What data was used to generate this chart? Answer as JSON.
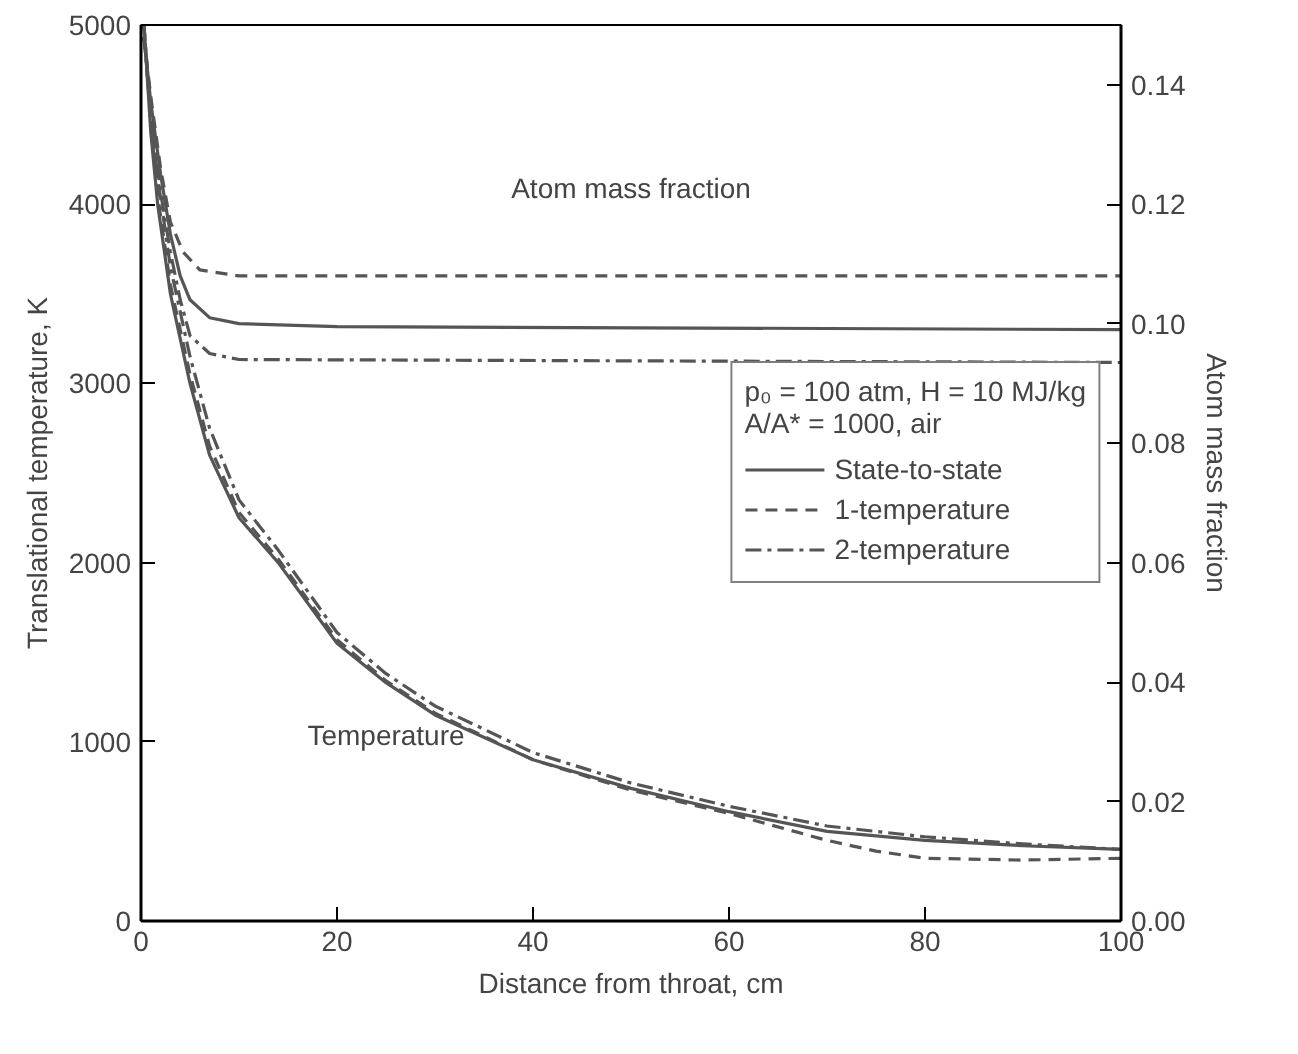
{
  "chart_data": {
    "type": "line",
    "xlabel": "Distance from throat, cm",
    "ylabel": "Translational temperature, K",
    "y2label": "Atom mass fraction",
    "xlim": [
      0,
      100
    ],
    "xticks": [
      0,
      20,
      40,
      60,
      80,
      100
    ],
    "ylim": [
      0,
      5000
    ],
    "yticks": [
      0,
      1000,
      2000,
      3000,
      4000,
      5000
    ],
    "y2lim": [
      0,
      0.15
    ],
    "y2ticks": [
      {
        "value": 0,
        "label": "0.00"
      },
      {
        "value": 0.02,
        "label": "0.02"
      },
      {
        "value": 0.04,
        "label": "0.04"
      },
      {
        "value": 0.06,
        "label": "0.06"
      },
      {
        "value": 0.08,
        "label": "0.08"
      },
      {
        "value": 0.1,
        "label": "0.10"
      },
      {
        "value": 0.12,
        "label": "0.12"
      },
      {
        "value": 0.14,
        "label": "0.14"
      }
    ],
    "grid": false,
    "legend": "right",
    "legend_title": "p₀ = 100 atm, H = 10 MJ/kg\nA/A* = 1000, air",
    "annotations": [
      "Atom mass fraction",
      "Temperature"
    ],
    "series": [
      {
        "name": "State-to-state",
        "color": "#555555",
        "line_style": "solid",
        "x": [
          0.3,
          1,
          1.7,
          3,
          5,
          7,
          10,
          14,
          20,
          25,
          30,
          40,
          50,
          60,
          70,
          80,
          90,
          100
        ],
        "values": [
          5000,
          4400,
          4000,
          3500,
          3000,
          2600,
          2250,
          2000,
          1550,
          1330,
          1150,
          900,
          740,
          610,
          500,
          450,
          420,
          400
        ]
      },
      {
        "name": "1-temperature",
        "color": "#555555",
        "line_style": "dashed",
        "x": [
          0.3,
          1,
          1.7,
          3,
          5,
          7,
          10,
          14,
          20,
          25,
          30,
          40,
          50,
          60,
          70,
          75,
          80,
          90,
          100
        ],
        "values": [
          5000,
          4450,
          4050,
          3550,
          3050,
          2650,
          2280,
          2020,
          1570,
          1340,
          1160,
          900,
          730,
          600,
          450,
          390,
          350,
          340,
          350
        ]
      },
      {
        "name": "2-temperature",
        "color": "#555555",
        "line_style": "dashdot",
        "x": [
          0.3,
          1,
          1.7,
          3,
          5,
          7,
          10,
          14,
          20,
          25,
          30,
          40,
          50,
          60,
          70,
          80,
          90,
          100
        ],
        "values": [
          5000,
          4500,
          4150,
          3650,
          3150,
          2750,
          2350,
          2070,
          1610,
          1380,
          1200,
          940,
          770,
          640,
          530,
          470,
          430,
          400
        ]
      },
      {
        "color": "#555555",
        "line_style": "solid",
        "axis": "y2",
        "x": [
          0.3,
          1,
          2,
          3,
          4,
          5,
          7,
          10,
          20,
          100
        ],
        "values": [
          0.148,
          0.137,
          0.125,
          0.115,
          0.108,
          0.104,
          0.101,
          0.1,
          0.0995,
          0.099
        ]
      },
      {
        "color": "#555555",
        "line_style": "dashed",
        "axis": "y2",
        "x": [
          0.3,
          1,
          2,
          3,
          4.3,
          6,
          10,
          100
        ],
        "values": [
          0.148,
          0.138,
          0.126,
          0.117,
          0.112,
          0.109,
          0.108,
          0.108
        ]
      },
      {
        "color": "#555555",
        "line_style": "dashdot",
        "axis": "y2",
        "x": [
          0.3,
          1,
          2,
          3,
          4,
          5,
          7,
          10,
          100
        ],
        "values": [
          0.148,
          0.135,
          0.122,
          0.112,
          0.104,
          0.098,
          0.095,
          0.094,
          0.0935
        ]
      }
    ]
  }
}
